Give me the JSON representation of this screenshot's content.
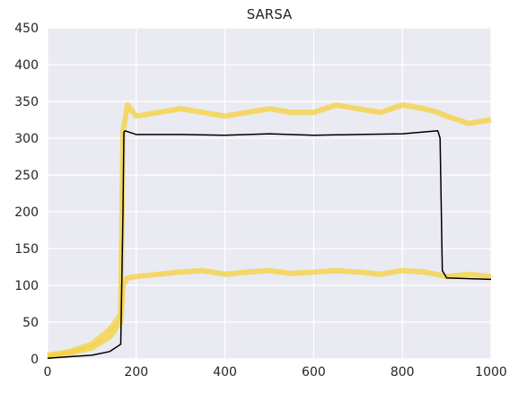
{
  "chart_data": {
    "type": "line",
    "title": "SARSA",
    "xlabel": "",
    "ylabel": "",
    "xlim": [
      0,
      1000
    ],
    "ylim": [
      0,
      450
    ],
    "xticks": [
      0,
      200,
      400,
      600,
      800,
      1000
    ],
    "yticks": [
      0,
      50,
      100,
      150,
      200,
      250,
      300,
      350,
      400,
      450
    ],
    "grid": true,
    "legend": "none",
    "colors": {
      "background": "#EAEAF2",
      "grid": "#FFFFFF",
      "series_band": "#F5D13B",
      "series_mean": "#000000"
    },
    "series": [
      {
        "role": "upper-trajectory-runs",
        "x": [
          0,
          50,
          100,
          140,
          165,
          170,
          175,
          180,
          200,
          250,
          300,
          350,
          400,
          450,
          500,
          550,
          600,
          650,
          700,
          750,
          800,
          850,
          880,
          900,
          950,
          1000
        ],
        "y": [
          5,
          10,
          20,
          40,
          60,
          310,
          325,
          345,
          330,
          335,
          340,
          335,
          330,
          335,
          340,
          335,
          335,
          345,
          340,
          335,
          345,
          340,
          335,
          330,
          320,
          325
        ]
      },
      {
        "role": "lower-trajectory-runs",
        "x": [
          0,
          50,
          100,
          140,
          165,
          170,
          180,
          200,
          250,
          300,
          350,
          400,
          450,
          500,
          550,
          600,
          650,
          700,
          750,
          800,
          850,
          900,
          950,
          1000
        ],
        "y": [
          3,
          8,
          15,
          30,
          50,
          100,
          110,
          112,
          115,
          118,
          120,
          115,
          118,
          120,
          116,
          118,
          120,
          118,
          115,
          120,
          118,
          112,
          115,
          112
        ]
      },
      {
        "role": "mean",
        "x": [
          0,
          50,
          100,
          140,
          165,
          170,
          172,
          175,
          200,
          300,
          400,
          500,
          600,
          700,
          800,
          880,
          885,
          890,
          900,
          1000
        ],
        "y": [
          1,
          3,
          5,
          10,
          20,
          200,
          308,
          310,
          305,
          305,
          304,
          306,
          304,
          305,
          306,
          310,
          300,
          120,
          110,
          108
        ]
      }
    ]
  }
}
